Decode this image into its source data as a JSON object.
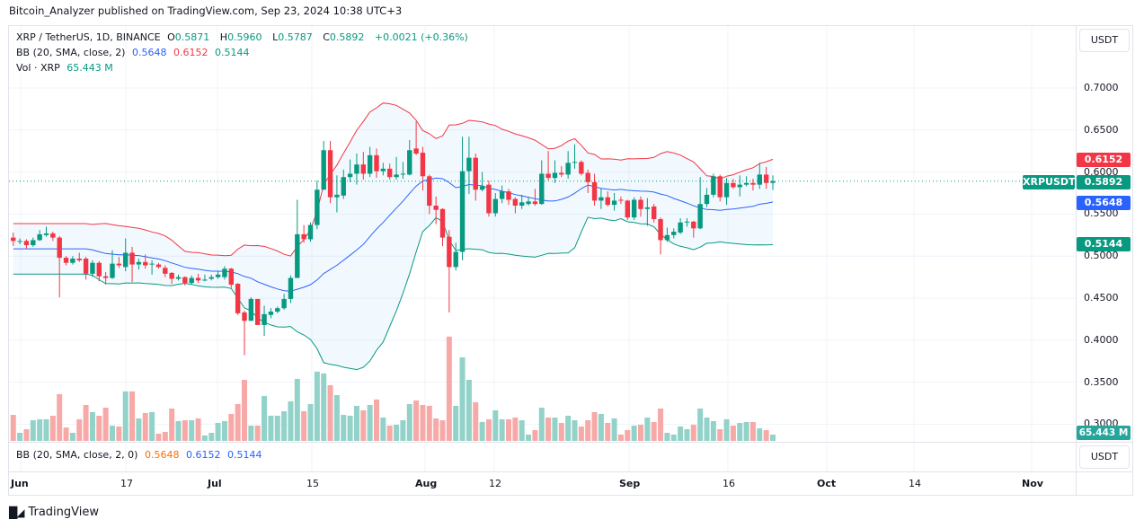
{
  "header": {
    "published": "Bitcoin_Analyzer published on TradingView.com, Sep 23, 2024 10:38 UTC+3"
  },
  "legend": {
    "symbol": "XRP / TetherUS, 1D, BINANCE",
    "o_label": "O",
    "o": "0.5871",
    "h_label": "H",
    "h": "0.5960",
    "l_label": "L",
    "l": "0.5787",
    "c_label": "C",
    "c": "0.5892",
    "change": "+0.0021 (+0.36%)",
    "bb_label": "BB (20, SMA, close, 2)",
    "bb_basis": "0.5648",
    "bb_upper": "0.6152",
    "bb_lower": "0.5144",
    "vol_label": "Vol · XRP",
    "vol": "65.443 M"
  },
  "bb_pane": {
    "label": "BB (20, SMA, close, 2, 0)",
    "basis": "0.5648",
    "upper": "0.6152",
    "lower": "0.5144",
    "unit": "USDT"
  },
  "price_axis": {
    "unit": "USDT",
    "ticks": [
      "0.7000",
      "0.6500",
      "0.6000",
      "0.5500",
      "0.5000",
      "0.4500",
      "0.4000",
      "0.3500",
      "0.3000"
    ],
    "badges": {
      "upper": "0.6152",
      "last": "0.5892",
      "symbol": "XRPUSDT",
      "basis": "0.5648",
      "lower": "0.5144",
      "volume": "65.443 M"
    }
  },
  "time_axis": {
    "ticks": [
      "Jun",
      "17",
      "Jul",
      "15",
      "Aug",
      "12",
      "Sep",
      "16",
      "Oct",
      "14",
      "Nov"
    ]
  },
  "footer": {
    "brand": "TradingView"
  },
  "colors": {
    "up": "#089981",
    "down": "#f23645",
    "bb_upper": "#f23645",
    "bb_basis": "#2962ff",
    "bb_lower": "#089981",
    "vol_up": "#92d2c9",
    "vol_down": "#f7a9a7"
  },
  "chart_data": {
    "type": "candlestick",
    "symbol": "XRPUSDT",
    "interval": "1D",
    "first_date": "2024-05-31",
    "last_date": "2024-09-23",
    "ylim": [
      0.28,
      0.73
    ],
    "ohlc": [
      [
        0.522,
        0.528,
        0.512,
        0.518
      ],
      [
        0.517,
        0.521,
        0.514,
        0.518
      ],
      [
        0.518,
        0.52,
        0.509,
        0.513
      ],
      [
        0.513,
        0.522,
        0.511,
        0.519
      ],
      [
        0.519,
        0.531,
        0.518,
        0.526
      ],
      [
        0.525,
        0.535,
        0.523,
        0.527
      ],
      [
        0.527,
        0.529,
        0.518,
        0.522
      ],
      [
        0.522,
        0.524,
        0.451,
        0.498
      ],
      [
        0.498,
        0.5,
        0.489,
        0.492
      ],
      [
        0.492,
        0.5,
        0.49,
        0.497
      ],
      [
        0.497,
        0.504,
        0.493,
        0.495
      ],
      [
        0.497,
        0.499,
        0.472,
        0.479
      ],
      [
        0.479,
        0.495,
        0.475,
        0.492
      ],
      [
        0.492,
        0.494,
        0.47,
        0.476
      ],
      [
        0.476,
        0.481,
        0.466,
        0.474
      ],
      [
        0.474,
        0.507,
        0.473,
        0.491
      ],
      [
        0.491,
        0.499,
        0.486,
        0.489
      ],
      [
        0.487,
        0.521,
        0.482,
        0.504
      ],
      [
        0.504,
        0.511,
        0.469,
        0.49
      ],
      [
        0.49,
        0.497,
        0.484,
        0.493
      ],
      [
        0.493,
        0.502,
        0.485,
        0.489
      ],
      [
        0.49,
        0.495,
        0.478,
        0.491
      ],
      [
        0.49,
        0.492,
        0.485,
        0.487
      ],
      [
        0.486,
        0.489,
        0.475,
        0.479
      ],
      [
        0.48,
        0.481,
        0.467,
        0.473
      ],
      [
        0.473,
        0.478,
        0.471,
        0.475
      ],
      [
        0.475,
        0.476,
        0.465,
        0.468
      ],
      [
        0.468,
        0.477,
        0.466,
        0.474
      ],
      [
        0.474,
        0.479,
        0.468,
        0.471
      ],
      [
        0.471,
        0.478,
        0.47,
        0.472
      ],
      [
        0.473,
        0.478,
        0.471,
        0.475
      ],
      [
        0.475,
        0.482,
        0.473,
        0.478
      ],
      [
        0.475,
        0.488,
        0.472,
        0.485
      ],
      [
        0.485,
        0.486,
        0.462,
        0.466
      ],
      [
        0.467,
        0.468,
        0.43,
        0.432
      ],
      [
        0.433,
        0.435,
        0.382,
        0.423
      ],
      [
        0.423,
        0.451,
        0.423,
        0.449
      ],
      [
        0.449,
        0.449,
        0.418,
        0.418
      ],
      [
        0.418,
        0.441,
        0.405,
        0.431
      ],
      [
        0.43,
        0.438,
        0.426,
        0.434
      ],
      [
        0.434,
        0.44,
        0.432,
        0.438
      ],
      [
        0.438,
        0.455,
        0.436,
        0.449
      ],
      [
        0.449,
        0.477,
        0.444,
        0.474
      ],
      [
        0.474,
        0.567,
        0.474,
        0.526
      ],
      [
        0.526,
        0.537,
        0.516,
        0.52
      ],
      [
        0.52,
        0.54,
        0.517,
        0.537
      ],
      [
        0.537,
        0.59,
        0.532,
        0.579
      ],
      [
        0.579,
        0.637,
        0.579,
        0.626
      ],
      [
        0.626,
        0.637,
        0.563,
        0.57
      ],
      [
        0.57,
        0.596,
        0.552,
        0.573
      ],
      [
        0.572,
        0.603,
        0.568,
        0.594
      ],
      [
        0.594,
        0.615,
        0.588,
        0.598
      ],
      [
        0.598,
        0.622,
        0.585,
        0.609
      ],
      [
        0.609,
        0.624,
        0.591,
        0.598
      ],
      [
        0.598,
        0.63,
        0.594,
        0.62
      ],
      [
        0.62,
        0.628,
        0.593,
        0.601
      ],
      [
        0.601,
        0.611,
        0.596,
        0.604
      ],
      [
        0.604,
        0.61,
        0.591,
        0.594
      ],
      [
        0.594,
        0.618,
        0.591,
        0.597
      ],
      [
        0.597,
        0.612,
        0.592,
        0.598
      ],
      [
        0.597,
        0.638,
        0.596,
        0.626
      ],
      [
        0.628,
        0.66,
        0.62,
        0.622
      ],
      [
        0.623,
        0.63,
        0.578,
        0.595
      ],
      [
        0.595,
        0.597,
        0.55,
        0.56
      ],
      [
        0.56,
        0.571,
        0.538,
        0.555
      ],
      [
        0.556,
        0.557,
        0.512,
        0.522
      ],
      [
        0.523,
        0.531,
        0.433,
        0.487
      ],
      [
        0.487,
        0.516,
        0.483,
        0.505
      ],
      [
        0.505,
        0.642,
        0.495,
        0.601
      ],
      [
        0.601,
        0.642,
        0.574,
        0.617
      ],
      [
        0.617,
        0.622,
        0.566,
        0.579
      ],
      [
        0.579,
        0.6,
        0.577,
        0.583
      ],
      [
        0.585,
        0.59,
        0.547,
        0.551
      ],
      [
        0.551,
        0.575,
        0.547,
        0.568
      ],
      [
        0.568,
        0.584,
        0.563,
        0.577
      ],
      [
        0.577,
        0.58,
        0.561,
        0.567
      ],
      [
        0.568,
        0.57,
        0.551,
        0.56
      ],
      [
        0.56,
        0.573,
        0.556,
        0.564
      ],
      [
        0.562,
        0.57,
        0.56,
        0.565
      ],
      [
        0.565,
        0.58,
        0.56,
        0.562
      ],
      [
        0.562,
        0.614,
        0.561,
        0.598
      ],
      [
        0.598,
        0.625,
        0.59,
        0.593
      ],
      [
        0.593,
        0.614,
        0.587,
        0.599
      ],
      [
        0.599,
        0.607,
        0.594,
        0.597
      ],
      [
        0.597,
        0.625,
        0.592,
        0.611
      ],
      [
        0.611,
        0.633,
        0.604,
        0.612
      ],
      [
        0.612,
        0.614,
        0.596,
        0.598
      ],
      [
        0.599,
        0.603,
        0.575,
        0.588
      ],
      [
        0.588,
        0.598,
        0.56,
        0.566
      ],
      [
        0.566,
        0.581,
        0.556,
        0.57
      ],
      [
        0.57,
        0.577,
        0.559,
        0.561
      ],
      [
        0.561,
        0.575,
        0.554,
        0.566
      ],
      [
        0.567,
        0.571,
        0.562,
        0.566
      ],
      [
        0.566,
        0.567,
        0.543,
        0.546
      ],
      [
        0.546,
        0.57,
        0.543,
        0.567
      ],
      [
        0.567,
        0.571,
        0.547,
        0.556
      ],
      [
        0.556,
        0.569,
        0.536,
        0.558
      ],
      [
        0.559,
        0.562,
        0.54,
        0.544
      ],
      [
        0.544,
        0.546,
        0.502,
        0.519
      ],
      [
        0.519,
        0.534,
        0.517,
        0.525
      ],
      [
        0.525,
        0.533,
        0.521,
        0.529
      ],
      [
        0.528,
        0.545,
        0.526,
        0.54
      ],
      [
        0.54,
        0.545,
        0.535,
        0.541
      ],
      [
        0.541,
        0.542,
        0.522,
        0.533
      ],
      [
        0.533,
        0.594,
        0.532,
        0.562
      ],
      [
        0.562,
        0.581,
        0.558,
        0.573
      ],
      [
        0.573,
        0.598,
        0.57,
        0.595
      ],
      [
        0.595,
        0.597,
        0.565,
        0.57
      ],
      [
        0.57,
        0.593,
        0.561,
        0.587
      ],
      [
        0.587,
        0.592,
        0.58,
        0.582
      ],
      [
        0.582,
        0.596,
        0.571,
        0.585
      ],
      [
        0.585,
        0.595,
        0.583,
        0.587
      ],
      [
        0.587,
        0.592,
        0.578,
        0.585
      ],
      [
        0.585,
        0.611,
        0.58,
        0.597
      ],
      [
        0.597,
        0.606,
        0.58,
        0.587
      ],
      [
        0.5871,
        0.596,
        0.5787,
        0.5892
      ]
    ],
    "volume_millions": [
      271,
      84,
      122,
      215,
      225,
      225,
      262,
      487,
      140,
      84,
      225,
      374,
      300,
      262,
      346,
      159,
      150,
      515,
      515,
      234,
      290,
      300,
      75,
      94,
      337,
      206,
      215,
      215,
      234,
      56,
      84,
      187,
      206,
      281,
      384,
      636,
      159,
      159,
      468,
      262,
      262,
      309,
      412,
      646,
      309,
      384,
      721,
      702,
      580,
      477,
      271,
      262,
      365,
      318,
      374,
      431,
      243,
      159,
      168,
      215,
      384,
      421,
      374,
      365,
      234,
      215,
      1086,
      365,
      870,
      636,
      402,
      197,
      225,
      318,
      225,
      225,
      243,
      215,
      66,
      112,
      346,
      243,
      243,
      187,
      262,
      215,
      150,
      215,
      300,
      281,
      187,
      234,
      66,
      112,
      159,
      168,
      243,
      197,
      337,
      84,
      66,
      150,
      122,
      168,
      337,
      243,
      206,
      122,
      225,
      159,
      187,
      197,
      197,
      131,
      112,
      65.443
    ],
    "indicators": {
      "bollinger": {
        "length": 20,
        "source": "close",
        "mult": 2,
        "basis": 0.5648,
        "upper": 0.6152,
        "lower": 0.5144
      }
    }
  }
}
